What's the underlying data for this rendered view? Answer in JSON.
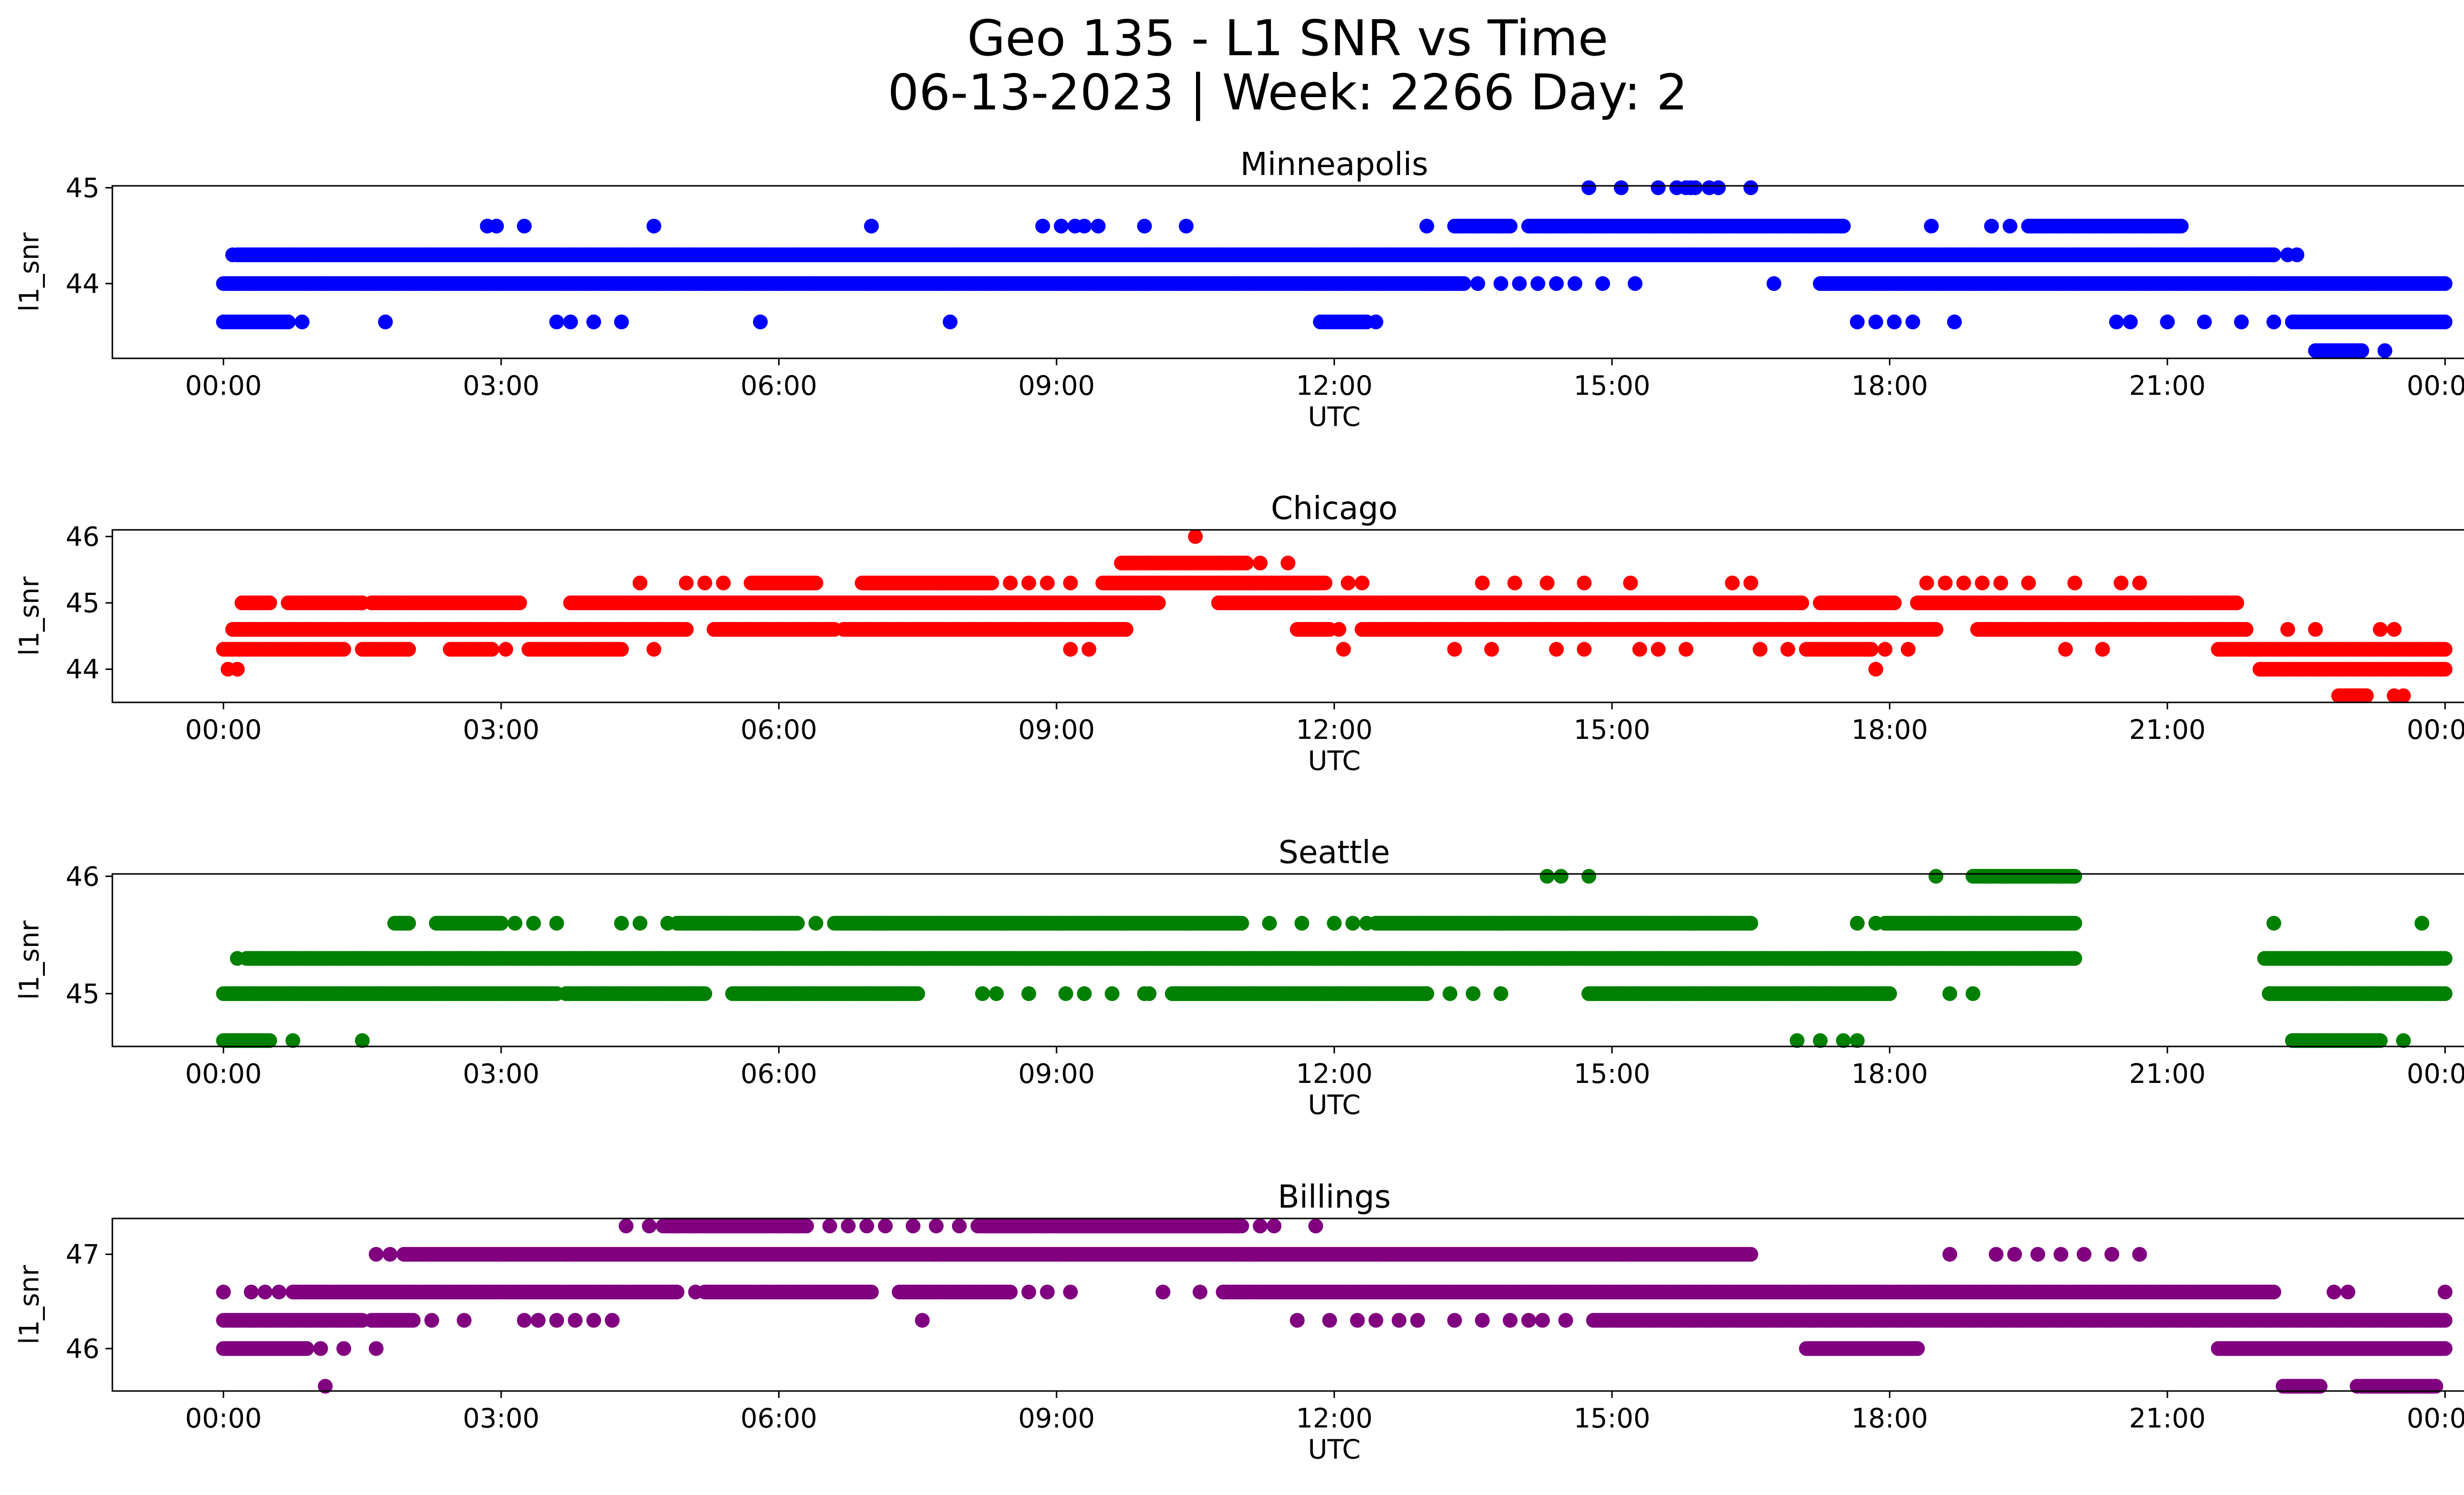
{
  "figure": {
    "title_line1": "Geo 135 - L1 SNR vs Time",
    "title_line2": "06-13-2023 | Week: 2266 Day: 2"
  },
  "chart_data": [
    {
      "type": "scatter",
      "title": "Minneapolis",
      "xlabel": "UTC",
      "ylabel": "l1_snr",
      "color": "#0000ff",
      "x_unit": "hours UTC",
      "x_ticks": [
        "00:00",
        "03:00",
        "06:00",
        "09:00",
        "12:00",
        "15:00",
        "18:00",
        "21:00",
        "00:00"
      ],
      "xlim": [
        -1.2,
        25.2
      ],
      "ylim": [
        43.22,
        45.02
      ],
      "y_ticks": [
        44,
        45
      ],
      "rows": [
        {
          "y": 45.0,
          "ranges": [],
          "points": [
            14.75,
            15.1,
            15.5,
            15.7,
            15.8,
            15.85,
            15.9,
            16.05,
            16.15,
            16.5
          ]
        },
        {
          "y": 44.6,
          "ranges": [
            [
              13.3,
              13.9
            ],
            [
              14.1,
              17.5
            ],
            [
              19.5,
              21.15
            ]
          ],
          "points": [
            2.85,
            2.95,
            3.25,
            4.65,
            7.0,
            8.85,
            9.05,
            9.2,
            9.3,
            9.45,
            9.95,
            10.4,
            13.0,
            18.45,
            19.1,
            19.3
          ]
        },
        {
          "y": 44.3,
          "ranges": [
            [
              0.15,
              22.15
            ]
          ],
          "points": [
            0.1,
            22.3,
            22.4
          ]
        },
        {
          "y": 44.0,
          "ranges": [
            [
              0.0,
              13.4
            ],
            [
              17.25,
              24.0
            ]
          ],
          "points": [
            13.55,
            13.8,
            14.0,
            14.2,
            14.4,
            14.6,
            14.9,
            15.25,
            16.75
          ]
        },
        {
          "y": 43.6,
          "ranges": [
            [
              0.0,
              0.7
            ],
            [
              11.85,
              12.35
            ],
            [
              22.35,
              24.0
            ]
          ],
          "points": [
            0.85,
            1.75,
            3.6,
            3.75,
            4.0,
            4.3,
            5.8,
            7.85,
            12.45,
            17.65,
            17.85,
            18.05,
            18.25,
            18.7,
            20.45,
            20.6,
            21.0,
            21.4,
            21.8,
            22.15
          ]
        },
        {
          "y": 43.3,
          "ranges": [
            [
              22.6,
              23.1
            ]
          ],
          "points": [
            23.35
          ]
        }
      ]
    },
    {
      "type": "scatter",
      "title": "Chicago",
      "xlabel": "UTC",
      "ylabel": "l1_snr",
      "color": "#ff0000",
      "x_unit": "hours UTC",
      "x_ticks": [
        "00:00",
        "03:00",
        "06:00",
        "09:00",
        "12:00",
        "15:00",
        "18:00",
        "21:00",
        "00:00"
      ],
      "xlim": [
        -1.2,
        25.2
      ],
      "ylim": [
        43.5,
        46.1
      ],
      "y_ticks": [
        44,
        45,
        46
      ],
      "rows": [
        {
          "y": 46.0,
          "ranges": [],
          "points": [
            10.5
          ]
        },
        {
          "y": 45.6,
          "ranges": [
            [
              9.7,
              11.05
            ]
          ],
          "points": [
            11.2,
            11.5
          ]
        },
        {
          "y": 45.3,
          "ranges": [
            [
              5.7,
              6.4
            ],
            [
              6.9,
              8.3
            ],
            [
              9.5,
              11.9
            ]
          ],
          "points": [
            4.5,
            5.0,
            5.2,
            5.4,
            8.5,
            8.7,
            8.9,
            9.15,
            12.15,
            12.3,
            13.6,
            13.95,
            14.3,
            14.7,
            15.2,
            16.3,
            16.5,
            18.4,
            18.6,
            18.8,
            19.0,
            19.2,
            19.5,
            20.0,
            20.5,
            20.7
          ]
        },
        {
          "y": 45.0,
          "ranges": [
            [
              0.2,
              0.5
            ],
            [
              0.7,
              1.5
            ],
            [
              1.6,
              3.2
            ],
            [
              3.75,
              10.1
            ],
            [
              10.75,
              17.05
            ],
            [
              17.25,
              18.05
            ],
            [
              18.3,
              21.75
            ]
          ],
          "points": []
        },
        {
          "y": 44.6,
          "ranges": [
            [
              0.1,
              5.0
            ],
            [
              5.3,
              6.6
            ],
            [
              6.7,
              9.75
            ],
            [
              11.6,
              11.95
            ],
            [
              12.3,
              18.5
            ],
            [
              18.95,
              21.85
            ]
          ],
          "points": [
            12.05,
            22.3,
            22.6,
            23.3,
            23.45
          ]
        },
        {
          "y": 44.3,
          "ranges": [
            [
              0.0,
              1.3
            ],
            [
              1.5,
              2.0
            ],
            [
              2.45,
              2.9
            ],
            [
              3.3,
              4.3
            ],
            [
              17.1,
              17.8
            ],
            [
              21.55,
              24.0
            ]
          ],
          "points": [
            3.05,
            4.65,
            9.15,
            9.35,
            12.1,
            13.3,
            13.7,
            14.4,
            14.7,
            15.3,
            15.5,
            15.8,
            16.6,
            16.9,
            17.95,
            18.2,
            19.9,
            20.3
          ]
        },
        {
          "y": 44.0,
          "ranges": [
            [
              22.0,
              24.0
            ]
          ],
          "points": [
            0.05,
            0.15,
            17.85
          ]
        },
        {
          "y": 43.6,
          "ranges": [
            [
              22.85,
              23.15
            ]
          ],
          "points": [
            23.45,
            23.55
          ]
        }
      ]
    },
    {
      "type": "scatter",
      "title": "Seattle",
      "xlabel": "UTC",
      "ylabel": "l1_snr",
      "color": "#008000",
      "x_unit": "hours UTC",
      "x_ticks": [
        "00:00",
        "03:00",
        "06:00",
        "09:00",
        "12:00",
        "15:00",
        "18:00",
        "21:00",
        "00:00"
      ],
      "xlim": [
        -1.2,
        25.2
      ],
      "ylim": [
        44.55,
        46.02
      ],
      "y_ticks": [
        45,
        46
      ],
      "rows": [
        {
          "y": 46.0,
          "ranges": [
            [
              18.9,
              20.0
            ]
          ],
          "points": [
            14.3,
            14.45,
            14.75,
            18.5
          ]
        },
        {
          "y": 45.6,
          "ranges": [
            [
              1.85,
              2.0
            ],
            [
              2.3,
              3.0
            ],
            [
              4.9,
              6.2
            ],
            [
              6.6,
              11.0
            ],
            [
              12.45,
              16.5
            ],
            [
              17.95,
              20.0
            ]
          ],
          "points": [
            3.15,
            3.35,
            3.6,
            4.3,
            4.5,
            4.8,
            6.4,
            11.3,
            11.65,
            12.0,
            12.2,
            12.35,
            17.65,
            17.85,
            22.15,
            23.75
          ]
        },
        {
          "y": 45.3,
          "ranges": [
            [
              0.25,
              20.0
            ],
            [
              22.05,
              24.0
            ]
          ],
          "points": [
            0.15
          ]
        },
        {
          "y": 45.0,
          "ranges": [
            [
              0.0,
              3.6
            ],
            [
              3.7,
              5.2
            ],
            [
              5.5,
              7.5
            ],
            [
              10.25,
              13.0
            ],
            [
              14.75,
              18.0
            ],
            [
              22.1,
              24.0
            ]
          ],
          "points": [
            8.2,
            8.35,
            8.7,
            9.1,
            9.3,
            9.6,
            9.95,
            10.0,
            13.25,
            13.5,
            13.8,
            18.65,
            18.9
          ]
        },
        {
          "y": 44.6,
          "ranges": [
            [
              0.0,
              0.5
            ],
            [
              22.35,
              23.3
            ]
          ],
          "points": [
            0.75,
            1.5,
            17.0,
            17.25,
            17.5,
            17.65,
            23.55
          ]
        }
      ]
    },
    {
      "type": "scatter",
      "title": "Billings",
      "xlabel": "UTC",
      "ylabel": "l1_snr",
      "color": "#800080",
      "x_unit": "hours UTC",
      "x_ticks": [
        "00:00",
        "03:00",
        "06:00",
        "09:00",
        "12:00",
        "15:00",
        "18:00",
        "21:00",
        "00:00"
      ],
      "xlim": [
        -1.2,
        25.2
      ],
      "ylim": [
        45.55,
        47.38
      ],
      "y_ticks": [
        46,
        47
      ],
      "rows": [
        {
          "y": 47.3,
          "ranges": [
            [
              4.75,
              6.3
            ],
            [
              8.15,
              11.0
            ]
          ],
          "points": [
            4.35,
            4.6,
            6.55,
            6.75,
            6.95,
            7.15,
            7.45,
            7.7,
            7.95,
            11.2,
            11.35,
            11.8
          ]
        },
        {
          "y": 47.0,
          "ranges": [
            [
              1.95,
              16.5
            ]
          ],
          "points": [
            1.65,
            1.8,
            18.65,
            19.15,
            19.35,
            19.6,
            19.85,
            20.1,
            20.4,
            20.7
          ]
        },
        {
          "y": 46.6,
          "ranges": [
            [
              0.75,
              4.9
            ],
            [
              5.2,
              7.0
            ],
            [
              7.3,
              8.5
            ],
            [
              10.8,
              22.15
            ]
          ],
          "points": [
            0.0,
            0.3,
            0.45,
            0.6,
            5.1,
            8.7,
            8.9,
            9.15,
            10.15,
            10.55,
            22.8,
            22.95,
            24.0
          ]
        },
        {
          "y": 46.3,
          "ranges": [
            [
              0.0,
              1.5
            ],
            [
              1.6,
              2.05
            ],
            [
              14.8,
              24.0
            ]
          ],
          "points": [
            2.25,
            2.6,
            3.25,
            3.4,
            3.6,
            3.8,
            4.0,
            4.2,
            11.6,
            11.95,
            12.25,
            12.45,
            12.7,
            12.9,
            13.3,
            13.6,
            13.9,
            14.1,
            14.25,
            14.5
          ]
        },
        {
          "y": 46.0,
          "ranges": [
            [
              0.0,
              0.9
            ],
            [
              17.1,
              18.3
            ],
            [
              21.55,
              24.0
            ]
          ],
          "points": [
            1.05,
            1.3,
            1.65
          ]
        },
        {
          "y": 45.6,
          "ranges": [
            [
              22.25,
              22.65
            ],
            [
              23.1,
              23.9
            ]
          ],
          "points": [
            1.1,
            23.05,
            23.35
          ]
        },
        {
          "y": 46.3,
          "ranges": [],
          "points": [
            7.55
          ]
        }
      ]
    }
  ]
}
